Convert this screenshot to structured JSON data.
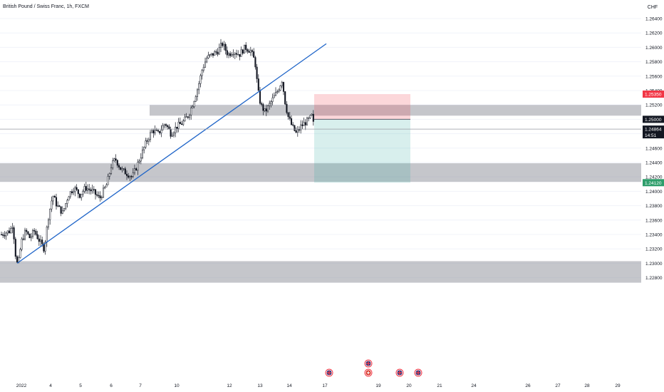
{
  "header": {
    "symbol_title": "British Pound / Swiss Franc, 1h, FXCM"
  },
  "price_axis": {
    "currency": "CHF",
    "ticks": [
      "1.26400",
      "1.26200",
      "1.26000",
      "1.25800",
      "1.25600",
      "1.25400",
      "1.25200",
      "1.25000",
      "1.24800",
      "1.24600",
      "1.24400",
      "1.24200",
      "1.24000",
      "1.23800",
      "1.23600",
      "1.23400",
      "1.23200",
      "1.23000",
      "1.22800"
    ],
    "tick_values": [
      1.264,
      1.262,
      1.26,
      1.258,
      1.256,
      1.254,
      1.252,
      1.25,
      1.248,
      1.246,
      1.244,
      1.242,
      1.24,
      1.238,
      1.236,
      1.234,
      1.232,
      1.23,
      1.228
    ],
    "badges": [
      {
        "id": "stop",
        "label": "1.25350",
        "value": 1.2535,
        "bg": "#f23645",
        "fg": "#ffffff"
      },
      {
        "id": "entry",
        "label": "1.25000",
        "value": 1.25,
        "bg": "#131722",
        "fg": "#ffffff"
      },
      {
        "id": "last",
        "label": "1.24864",
        "sub": "14:51",
        "value": 1.24864,
        "bg": "#131722",
        "fg": "#ffffff"
      },
      {
        "id": "target",
        "label": "1.24120",
        "value": 1.2412,
        "bg": "#2e9e6b",
        "fg": "#ffffff"
      }
    ]
  },
  "time_axis": {
    "labels": [
      "2022",
      "4",
      "5",
      "6",
      "7",
      "10",
      "12",
      "13",
      "14",
      "17",
      "19",
      "20",
      "21",
      "24",
      "26",
      "27",
      "28",
      "29"
    ]
  },
  "colors": {
    "candle": "#131722",
    "trendline": "#1e64c8",
    "zone": "#9598a1",
    "risk_fill": "#f23645",
    "reward_fill": "#26a69a",
    "grid": "#f0f3fa",
    "axis_text": "#131722"
  },
  "chart_data": {
    "type": "candlestick",
    "title": "British Pound / Swiss Franc, 1h, FXCM",
    "y_unit": "CHF",
    "ylim": [
      1.2272,
      1.2652
    ],
    "key_points": [
      {
        "x": "2022 (Jan 3)",
        "close": 1.2332
      },
      {
        "x": "Jan 3 low",
        "low": 1.229
      },
      {
        "x": "Jan 6",
        "close": 1.244
      },
      {
        "x": "Jan 7",
        "close": 1.2422
      },
      {
        "x": "Jan 10",
        "close": 1.25
      },
      {
        "x": "Jan 11 high",
        "high": 1.2606
      },
      {
        "x": "Jan 12",
        "close": 1.2598
      },
      {
        "x": "Jan 13",
        "close": 1.2515
      },
      {
        "x": "Jan 13 high",
        "high": 1.2556
      },
      {
        "x": "Jan 14 low",
        "low": 1.247
      },
      {
        "x": "last",
        "close": 1.24864
      }
    ],
    "zones": [
      {
        "low": 1.251,
        "high": 1.2515
      },
      {
        "low": 1.2418,
        "high": 1.2434
      },
      {
        "low": 1.2278,
        "high": 1.2298
      }
    ],
    "trendline": {
      "from": {
        "x": "Jan 3",
        "y": 1.23
      },
      "to": {
        "x": "Jan 14",
        "y": 1.2605
      }
    },
    "position": {
      "type": "short",
      "entry": 1.25,
      "stop": 1.2535,
      "target": 1.2412
    },
    "legend": "none",
    "grid": true
  },
  "event_icons": [
    {
      "name": "uk-flag-event-icon"
    },
    {
      "name": "uk-flag-event-icon"
    },
    {
      "name": "swiss-flag-event-icon"
    },
    {
      "name": "uk-flag-event-icon"
    },
    {
      "name": "uk-flag-event-icon"
    }
  ]
}
